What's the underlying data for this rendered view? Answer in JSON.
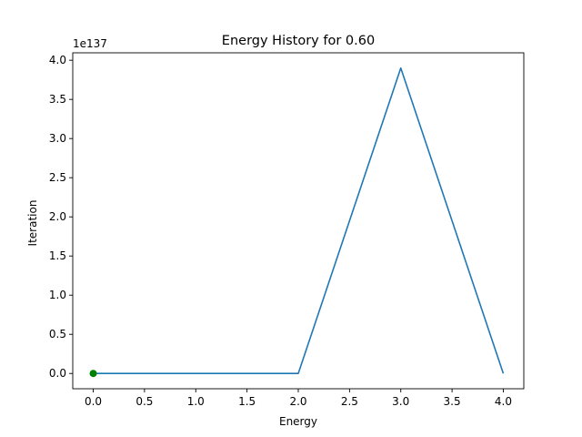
{
  "chart_data": {
    "type": "line",
    "title": "Energy History for 0.60",
    "xlabel": "Energy",
    "ylabel": "Iteration",
    "y_offset_label": "1e137",
    "xlim": [
      -0.2,
      4.2
    ],
    "ylim": [
      -0.195,
      4.095
    ],
    "x_ticks": [
      {
        "value": 0.0,
        "label": "0.0"
      },
      {
        "value": 0.5,
        "label": "0.5"
      },
      {
        "value": 1.0,
        "label": "1.0"
      },
      {
        "value": 1.5,
        "label": "1.5"
      },
      {
        "value": 2.0,
        "label": "2.0"
      },
      {
        "value": 2.5,
        "label": "2.5"
      },
      {
        "value": 3.0,
        "label": "3.0"
      },
      {
        "value": 3.5,
        "label": "3.5"
      },
      {
        "value": 4.0,
        "label": "4.0"
      }
    ],
    "y_ticks": [
      {
        "value": 0.0,
        "label": "0.0"
      },
      {
        "value": 0.5,
        "label": "0.5"
      },
      {
        "value": 1.0,
        "label": "1.0"
      },
      {
        "value": 1.5,
        "label": "1.5"
      },
      {
        "value": 2.0,
        "label": "2.0"
      },
      {
        "value": 2.5,
        "label": "2.5"
      },
      {
        "value": 3.0,
        "label": "3.0"
      },
      {
        "value": 3.5,
        "label": "3.5"
      },
      {
        "value": 4.0,
        "label": "4.0"
      }
    ],
    "grid": false,
    "series": [
      {
        "x": [
          0,
          1,
          2,
          3,
          4
        ],
        "y": [
          0,
          0,
          0,
          3.9,
          0
        ],
        "color": "#1f77b4"
      }
    ],
    "marker": {
      "x": 0,
      "y": 0,
      "color": "#008000"
    }
  }
}
